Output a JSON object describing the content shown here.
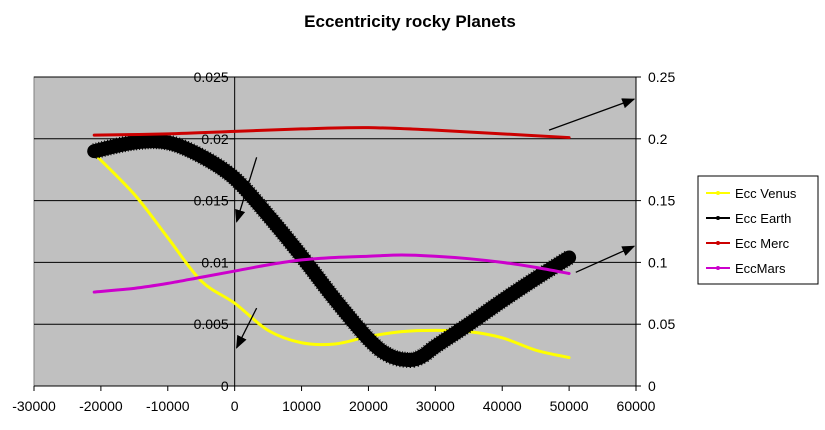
{
  "chart_data": {
    "type": "line",
    "title": "Eccentricity rocky Planets",
    "xlim": [
      -30000,
      60000
    ],
    "x_ticks": [
      "-30000",
      "-20000",
      "-10000",
      "0",
      "10000",
      "20000",
      "30000",
      "40000",
      "50000",
      "60000"
    ],
    "x_tick_values": [
      -30000,
      -20000,
      -10000,
      0,
      10000,
      20000,
      30000,
      40000,
      50000,
      60000
    ],
    "left_axis": {
      "ylim": [
        0,
        0.025
      ],
      "ticks": [
        "0",
        "0.005",
        "0.01",
        "0.015",
        "0.02",
        "0.025"
      ],
      "tick_values": [
        0,
        0.005,
        0.01,
        0.015,
        0.02,
        0.025
      ]
    },
    "right_axis": {
      "ylim": [
        0,
        0.25
      ],
      "ticks": [
        "0",
        "0.05",
        "0.1",
        "0.15",
        "0.2",
        "0.25"
      ],
      "tick_values": [
        0,
        0.05,
        0.1,
        0.15,
        0.2,
        0.25
      ]
    },
    "grid": "horizontal",
    "legend_position": "right",
    "series": [
      {
        "name": "Ecc Venus",
        "axis": "left",
        "color": "#ffff00",
        "line_weight": "normal",
        "x": [
          -21000,
          -15000,
          -10000,
          -5000,
          0,
          5000,
          10000,
          15000,
          20000,
          25000,
          30000,
          35000,
          40000,
          45000,
          50000
        ],
        "y": [
          0.0188,
          0.0155,
          0.012,
          0.0085,
          0.0067,
          0.0045,
          0.0035,
          0.0034,
          0.004,
          0.0044,
          0.0045,
          0.0044,
          0.0039,
          0.0029,
          0.0023
        ]
      },
      {
        "name": "Ecc Earth",
        "axis": "left",
        "color": "#000000",
        "line_weight": "heavy",
        "x": [
          -21000,
          -15000,
          -10000,
          -5000,
          0,
          5000,
          10000,
          15000,
          20000,
          23000,
          26000,
          28000,
          30000,
          35000,
          40000,
          45000,
          50000
        ],
        "y": [
          0.019,
          0.0197,
          0.0197,
          0.0186,
          0.0168,
          0.0138,
          0.0105,
          0.007,
          0.0038,
          0.0025,
          0.0021,
          0.0024,
          0.0032,
          0.005,
          0.0069,
          0.0087,
          0.0104
        ]
      },
      {
        "name": "Ecc Merc",
        "axis": "right",
        "color": "#cc0000",
        "line_weight": "normal",
        "x": [
          -21000,
          -10000,
          0,
          10000,
          20000,
          30000,
          40000,
          50000
        ],
        "y": [
          0.203,
          0.204,
          0.206,
          0.208,
          0.209,
          0.207,
          0.204,
          0.201
        ]
      },
      {
        "name": "EccMars",
        "axis": "right",
        "color": "#cc00cc",
        "line_weight": "normal",
        "x": [
          -21000,
          -15000,
          -10000,
          -5000,
          0,
          5000,
          10000,
          15000,
          20000,
          25000,
          30000,
          35000,
          40000,
          45000,
          50000
        ],
        "y": [
          0.076,
          0.079,
          0.083,
          0.088,
          0.093,
          0.098,
          0.102,
          0.104,
          0.105,
          0.106,
          0.105,
          0.103,
          0.1,
          0.096,
          0.091
        ]
      }
    ],
    "annotations": [
      {
        "type": "arrow",
        "direction": "left",
        "note": "points to left axis"
      },
      {
        "type": "arrow",
        "direction": "left",
        "note": "points to left axis"
      },
      {
        "type": "arrow",
        "direction": "right",
        "note": "points to right axis"
      },
      {
        "type": "arrow",
        "direction": "right",
        "note": "points to right axis"
      }
    ]
  }
}
